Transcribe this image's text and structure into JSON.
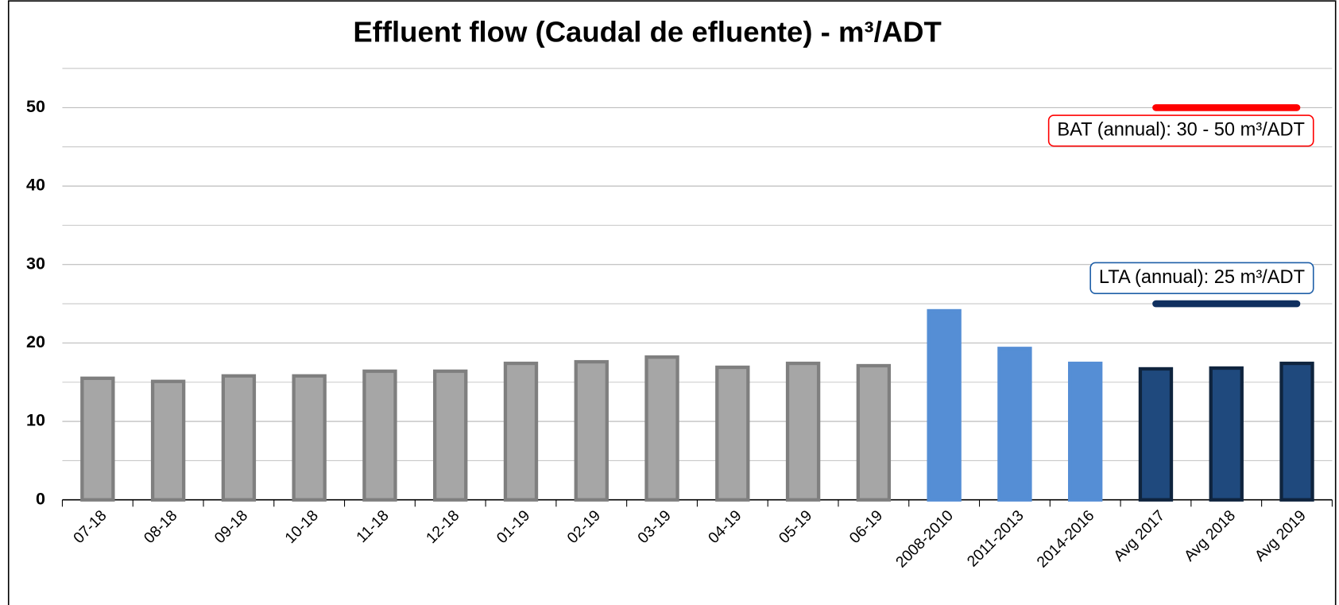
{
  "chart_data": {
    "type": "bar",
    "title": "Effluent flow (Caudal de efluente) - m³/ADT",
    "categories": [
      "07-18",
      "08-18",
      "09-18",
      "10-18",
      "11-18",
      "12-18",
      "01-19",
      "02-19",
      "03-19",
      "04-19",
      "05-19",
      "06-19",
      "2008-2010",
      "2011-2013",
      "2014-2016",
      "Avg 2017",
      "Avg 2018",
      "Avg 2019"
    ],
    "values": [
      15.5,
      15.1,
      15.8,
      15.8,
      16.4,
      16.4,
      17.4,
      17.6,
      18.2,
      16.9,
      17.4,
      17.1,
      24.1,
      19.3,
      17.4,
      16.7,
      16.8,
      17.4
    ],
    "colors": [
      "#a6a6a6",
      "#a6a6a6",
      "#a6a6a6",
      "#a6a6a6",
      "#a6a6a6",
      "#a6a6a6",
      "#a6a6a6",
      "#a6a6a6",
      "#a6a6a6",
      "#a6a6a6",
      "#a6a6a6",
      "#a6a6a6",
      "#558ed5",
      "#558ed5",
      "#558ed5",
      "#1f497d",
      "#1f497d",
      "#1f497d"
    ],
    "edge_colors": [
      "#7f7f7f",
      "#7f7f7f",
      "#7f7f7f",
      "#7f7f7f",
      "#7f7f7f",
      "#7f7f7f",
      "#7f7f7f",
      "#7f7f7f",
      "#7f7f7f",
      "#7f7f7f",
      "#7f7f7f",
      "#7f7f7f",
      "#558ed5",
      "#558ed5",
      "#558ed5",
      "#0f243e",
      "#0f243e",
      "#0f243e"
    ],
    "ylim": [
      0,
      55
    ],
    "yticks": [
      0,
      10,
      20,
      30,
      40,
      50
    ],
    "minor_yticks": [
      5,
      15,
      25,
      35,
      45,
      55
    ],
    "grid": true,
    "reference_lines": [
      {
        "value": 50,
        "color": "#ff0000",
        "label": "BAT (annual): 30 - 50 m³/ADT",
        "from": "Avg 2017",
        "to": "Avg 2019"
      },
      {
        "value": 25,
        "color": "#0f2f5f",
        "label": "LTA (annual): 25 m³/ADT",
        "from": "Avg 2017",
        "to": "Avg 2019",
        "label_color": "#1f5fa8"
      }
    ]
  }
}
